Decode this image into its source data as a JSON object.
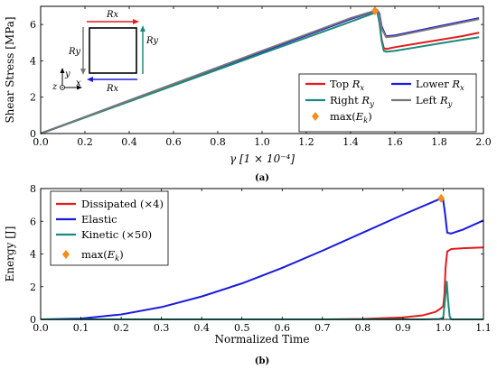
{
  "chart_data": [
    {
      "type": "line",
      "caption": "(a)",
      "xlabel": "γ [1 × 10⁻⁴]",
      "ylabel": "Shear Stress [MPa]",
      "xlim": [
        0.0,
        2.0
      ],
      "ylim": [
        0,
        7
      ],
      "xticks": [
        "0.0",
        "0.2",
        "0.4",
        "0.6",
        "0.8",
        "1.0",
        "1.2",
        "1.4",
        "1.6",
        "1.8",
        "2.0"
      ],
      "yticks": [
        "0",
        "2",
        "4",
        "6"
      ],
      "legend_position": "bottom-right",
      "series": [
        {
          "name": "Top Rx",
          "color": "#e41a1c",
          "x": [
            0,
            0.5,
            1.0,
            1.4,
            1.5,
            1.52,
            1.53,
            1.54,
            1.55,
            1.56,
            1.6,
            1.7,
            1.8,
            1.9,
            1.98
          ],
          "y": [
            0,
            2.25,
            4.5,
            6.3,
            6.7,
            6.75,
            6.2,
            5.2,
            4.7,
            4.65,
            4.75,
            4.95,
            5.15,
            5.35,
            5.55
          ]
        },
        {
          "name": "Lower Rx",
          "color": "#1a1add",
          "x": [
            0,
            0.5,
            1.0,
            1.4,
            1.5,
            1.52,
            1.53,
            1.54,
            1.56,
            1.6,
            1.7,
            1.8,
            1.9,
            1.98
          ],
          "y": [
            0,
            2.25,
            4.5,
            6.3,
            6.7,
            6.8,
            6.6,
            5.9,
            5.35,
            5.4,
            5.65,
            5.9,
            6.15,
            6.35
          ]
        },
        {
          "name": "Right Ry",
          "color": "#1b8a7a",
          "x": [
            0,
            0.5,
            1.0,
            1.4,
            1.5,
            1.52,
            1.53,
            1.54,
            1.55,
            1.56,
            1.6,
            1.7,
            1.8,
            1.9,
            1.98
          ],
          "y": [
            0,
            2.2,
            4.4,
            6.15,
            6.6,
            6.7,
            6.1,
            5.1,
            4.55,
            4.5,
            4.55,
            4.75,
            4.95,
            5.15,
            5.3
          ]
        },
        {
          "name": "Left Ry",
          "color": "#777777",
          "x": [
            0,
            0.5,
            1.0,
            1.4,
            1.5,
            1.52,
            1.53,
            1.54,
            1.56,
            1.6,
            1.7,
            1.8,
            1.9,
            1.98
          ],
          "y": [
            0,
            2.28,
            4.55,
            6.35,
            6.72,
            6.8,
            6.5,
            5.8,
            5.3,
            5.35,
            5.6,
            5.85,
            6.1,
            6.3
          ]
        }
      ],
      "markers": [
        {
          "name": "max(Ek)",
          "color": "#f28e1c",
          "x": 1.51,
          "y": 6.75
        }
      ],
      "legend_entries": [
        "Top Rx",
        "Lower Rx",
        "Right Ry",
        "Left Ry",
        "max(Ek)"
      ],
      "inset": {
        "top_label": "Rx",
        "bottom_label": "Rx",
        "left_label": "Ry",
        "right_label": "Ry",
        "axis_x": "x",
        "axis_y": "y",
        "axis_z": "z",
        "top_arrow_color": "#e41a1c",
        "bottom_arrow_color": "#1a1add",
        "left_arrow_color": "#777777",
        "right_arrow_color": "#1b8a7a"
      }
    },
    {
      "type": "line",
      "caption": "(b)",
      "xlabel": "Normalized Time",
      "ylabel": "Energy [J]",
      "xlim": [
        0.0,
        1.1
      ],
      "ylim": [
        0,
        8
      ],
      "xticks": [
        "0.0",
        "0.1",
        "0.2",
        "0.3",
        "0.4",
        "0.5",
        "0.6",
        "0.7",
        "0.8",
        "0.9",
        "1.0",
        "1.1"
      ],
      "yticks": [
        "0",
        "2",
        "4",
        "6",
        "8"
      ],
      "legend_position": "top-left",
      "series": [
        {
          "name": "Dissipated (×4)",
          "color": "#e41a1c",
          "x": [
            0,
            0.7,
            0.8,
            0.9,
            0.95,
            0.98,
            0.99,
            1.0,
            1.003,
            1.006,
            1.01,
            1.02,
            1.05,
            1.1
          ],
          "y": [
            0,
            0,
            0.03,
            0.12,
            0.25,
            0.45,
            0.6,
            0.8,
            1.5,
            3.2,
            4.15,
            4.3,
            4.35,
            4.4
          ]
        },
        {
          "name": "Elastic",
          "color": "#1a1add",
          "x": [
            0,
            0.1,
            0.2,
            0.3,
            0.4,
            0.5,
            0.6,
            0.7,
            0.8,
            0.9,
            0.99,
            1.0,
            1.005,
            1.01,
            1.02,
            1.05,
            1.1
          ],
          "y": [
            0,
            0.05,
            0.3,
            0.75,
            1.4,
            2.2,
            3.15,
            4.2,
            5.3,
            6.4,
            7.35,
            7.3,
            6.4,
            5.3,
            5.25,
            5.5,
            6.05
          ]
        },
        {
          "name": "Kinetic (×50)",
          "color": "#1b8a7a",
          "x": [
            0,
            0.95,
            0.99,
            1.0,
            1.003,
            1.006,
            1.009,
            1.012,
            1.016,
            1.02,
            1.1
          ],
          "y": [
            0,
            0,
            0.02,
            0.1,
            0.8,
            1.6,
            2.3,
            1.2,
            0.2,
            0,
            0
          ]
        }
      ],
      "markers": [
        {
          "name": "max(Ek)",
          "color": "#f28e1c",
          "x": 0.995,
          "y": 7.4
        }
      ],
      "legend_entries": [
        "Dissipated (×4)",
        "Elastic",
        "Kinetic (×50)",
        "max(Ek)"
      ]
    }
  ]
}
